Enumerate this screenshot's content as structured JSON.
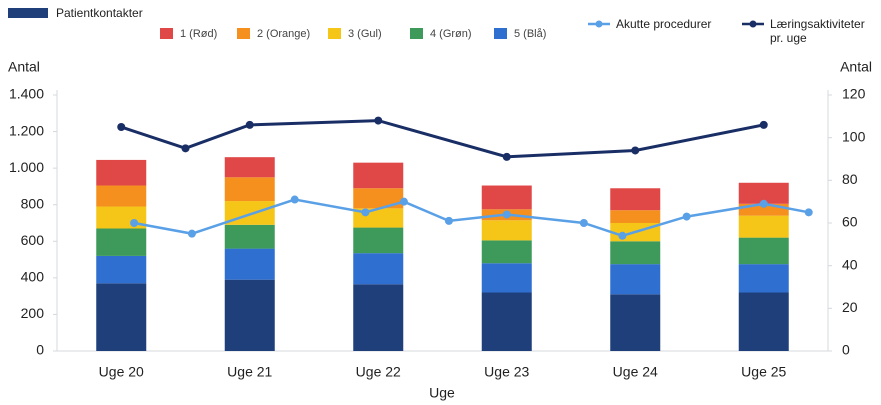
{
  "chart_data": {
    "type": "bar",
    "stacked": true,
    "xlabel": "Uge",
    "ylabel": "Antal",
    "y2label": "Antal",
    "categories": [
      "Uge 20",
      "Uge 21",
      "Uge 22",
      "Uge 23",
      "Uge 24",
      "Uge 25"
    ],
    "ylim": [
      0,
      1400
    ],
    "yticks": [
      0,
      200,
      400,
      600,
      800,
      {
        "value": 1000,
        "label": "1.000"
      },
      {
        "value": 1200,
        "label": "1.200"
      },
      {
        "value": 1400,
        "label": "1.400"
      }
    ],
    "y2lim": [
      0,
      120
    ],
    "y2ticks": [
      0,
      20,
      40,
      60,
      80,
      100,
      120
    ],
    "grid": false,
    "series": [
      {
        "name": "Patientkontakter",
        "color": "#1f3f7a",
        "values": [
          370,
          390,
          365,
          320,
          310,
          320
        ]
      },
      {
        "name": "5 (Blå)",
        "color": "#2f6fd0",
        "values": [
          150,
          170,
          170,
          160,
          165,
          155
        ]
      },
      {
        "name": "4 (Grøn)",
        "color": "#3d9a5a",
        "values": [
          150,
          130,
          140,
          125,
          125,
          145
        ]
      },
      {
        "name": "3 (Gul)",
        "color": "#f5c518",
        "values": [
          120,
          130,
          105,
          110,
          100,
          120
        ]
      },
      {
        "name": "2 (Orange)",
        "color": "#f5901e",
        "values": [
          115,
          130,
          110,
          60,
          70,
          65
        ]
      },
      {
        "name": "1 (Rød)",
        "color": "#e04848",
        "values": [
          140,
          110,
          140,
          130,
          120,
          115
        ]
      },
      {
        "name": "Akutte procedurer",
        "type": "line",
        "axis": "y2",
        "color": "#5aa0e6",
        "x": [
          0.1,
          0.55,
          1.35,
          1.9,
          2.2,
          2.55,
          3,
          3.6,
          3.9,
          4.4,
          5,
          5.35
        ],
        "values": [
          60,
          55,
          71,
          65,
          70,
          61,
          64,
          60,
          54,
          63,
          69,
          65
        ]
      },
      {
        "name": "Læringsaktiviteter pr. uge",
        "type": "line",
        "axis": "y2",
        "color": "#1a2e66",
        "x": [
          0,
          0.5,
          1,
          2,
          3,
          4,
          5
        ],
        "values": [
          105,
          95,
          106,
          108,
          91,
          94,
          106
        ]
      }
    ]
  }
}
